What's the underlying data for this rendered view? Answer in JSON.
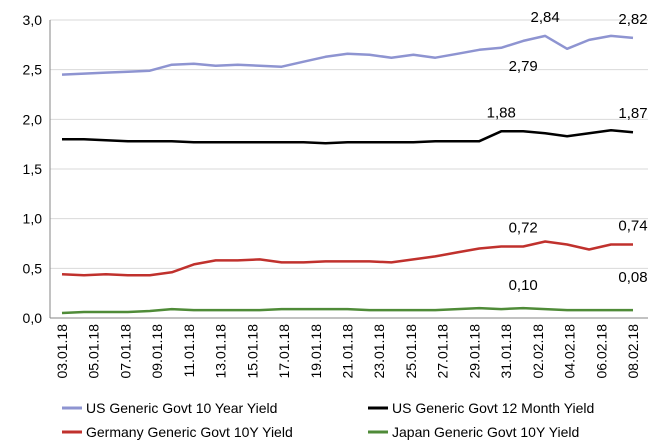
{
  "chart_data": {
    "type": "line",
    "title": "",
    "xlabel": "",
    "ylabel": "",
    "ylim": [
      0,
      3
    ],
    "yticks": [
      "0,0",
      "0,5",
      "1,0",
      "1,5",
      "2,0",
      "2,5",
      "3,0"
    ],
    "grid": "horizontal",
    "legend_position": "bottom",
    "x": [
      "03.01.18",
      "04.01.18",
      "05.01.18",
      "08.01.18",
      "09.01.18",
      "10.01.18",
      "11.01.18",
      "12.01.18",
      "15.01.18",
      "16.01.18",
      "17.01.18",
      "18.01.18",
      "19.01.18",
      "22.01.18",
      "23.01.18",
      "24.01.18",
      "25.01.18",
      "26.01.18",
      "29.01.18",
      "30.01.18",
      "31.01.18",
      "01.02.18",
      "02.02.18",
      "05.02.18",
      "06.02.18",
      "07.02.18",
      "08.02.18"
    ],
    "xtick_labels": [
      "03.01.18",
      "05.01.18",
      "07.01.18",
      "09.01.18",
      "11.01.18",
      "13.01.18",
      "15.01.18",
      "17.01.18",
      "19.01.18",
      "21.01.18",
      "23.01.18",
      "25.01.18",
      "27.01.18",
      "29.01.18",
      "31.01.18",
      "02.02.18",
      "04.02.18",
      "06.02.18",
      "08.02.18"
    ],
    "series": [
      {
        "name": "US Generic Govt 10 Year Yield",
        "color": "#8e94d1",
        "values": [
          2.45,
          2.46,
          2.47,
          2.48,
          2.49,
          2.55,
          2.56,
          2.54,
          2.55,
          2.54,
          2.53,
          2.58,
          2.63,
          2.66,
          2.65,
          2.62,
          2.65,
          2.62,
          2.66,
          2.7,
          2.72,
          2.79,
          2.84,
          2.71,
          2.8,
          2.84,
          2.82
        ]
      },
      {
        "name": "US Generic Govt 12 Month Yield",
        "color": "#000000",
        "values": [
          1.8,
          1.8,
          1.79,
          1.78,
          1.78,
          1.78,
          1.77,
          1.77,
          1.77,
          1.77,
          1.77,
          1.77,
          1.76,
          1.77,
          1.77,
          1.77,
          1.77,
          1.78,
          1.78,
          1.78,
          1.88,
          1.88,
          1.86,
          1.83,
          1.86,
          1.89,
          1.87
        ]
      },
      {
        "name": "Germany Generic Govt 10Y Yield",
        "color": "#c0312d",
        "values": [
          0.44,
          0.43,
          0.44,
          0.43,
          0.43,
          0.46,
          0.54,
          0.58,
          0.58,
          0.59,
          0.56,
          0.56,
          0.57,
          0.57,
          0.57,
          0.56,
          0.59,
          0.62,
          0.66,
          0.7,
          0.72,
          0.72,
          0.77,
          0.74,
          0.69,
          0.74,
          0.74
        ]
      },
      {
        "name": "Japan Generic Govt 10Y Yield",
        "color": "#4f8b38",
        "values": [
          0.05,
          0.06,
          0.06,
          0.06,
          0.07,
          0.09,
          0.08,
          0.08,
          0.08,
          0.08,
          0.09,
          0.09,
          0.09,
          0.09,
          0.08,
          0.08,
          0.08,
          0.08,
          0.09,
          0.1,
          0.09,
          0.1,
          0.09,
          0.08,
          0.08,
          0.08,
          0.08
        ]
      }
    ],
    "annotations": [
      {
        "text": "2,84",
        "series": 0,
        "index": 22
      },
      {
        "text": "2,82",
        "series": 0,
        "index": 26
      },
      {
        "text": "2,79",
        "series": 0,
        "index": 21
      },
      {
        "text": "1,88",
        "series": 1,
        "index": 20
      },
      {
        "text": "1,87",
        "series": 1,
        "index": 26
      },
      {
        "text": "0,72",
        "series": 2,
        "index": 21
      },
      {
        "text": "0,74",
        "series": 2,
        "index": 26
      },
      {
        "text": "0,10",
        "series": 3,
        "index": 21
      },
      {
        "text": "0,08",
        "series": 3,
        "index": 26
      }
    ]
  }
}
